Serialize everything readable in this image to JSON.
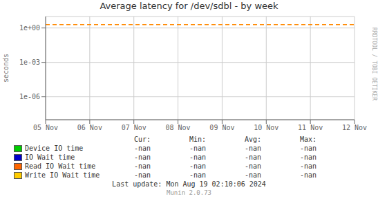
{
  "chart_data": {
    "type": "line",
    "title": "Average latency for /dev/sdbl - by week",
    "y_label": "seconds",
    "categories": [
      "05 Nov",
      "06 Nov",
      "07 Nov",
      "08 Nov",
      "09 Nov",
      "10 Nov",
      "11 Nov",
      "12 Nov"
    ],
    "series": [
      {
        "name": "Device IO time",
        "color": "#00cc00",
        "values": [
          null,
          null,
          null,
          null,
          null,
          null,
          null,
          null
        ],
        "legend_values": [
          "-nan",
          "-nan",
          "-nan",
          "-nan"
        ]
      },
      {
        "name": "IO Wait time",
        "color": "#0000cc",
        "values": [
          null,
          null,
          null,
          null,
          null,
          null,
          null,
          null
        ],
        "legend_values": [
          "-nan",
          "-nan",
          "-nan",
          "-nan"
        ]
      },
      {
        "name": "Read IO Wait time",
        "color": "#ff6600",
        "values": [
          null,
          null,
          null,
          null,
          null,
          null,
          null,
          null
        ],
        "legend_values": [
          "-nan",
          "-nan",
          "-nan",
          "-nan"
        ]
      },
      {
        "name": "Write IO Wait time",
        "color": "#ffcc00",
        "values": [
          null,
          null,
          null,
          null,
          null,
          null,
          null,
          null
        ],
        "legend_values": [
          "-nan",
          "-nan",
          "-nan",
          "-nan"
        ]
      }
    ],
    "legend_columns": [
      "Cur:",
      "Min:",
      "Avg:",
      "Max:"
    ],
    "ylim": [
      1e-08,
      10
    ],
    "yticks": [
      {
        "value": 1e-06,
        "label": "1e-06"
      },
      {
        "value": 0.001,
        "label": "1e-03"
      },
      {
        "value": 1,
        "label": "1e+00"
      }
    ],
    "log": "y",
    "grid": true,
    "legend": "bottom",
    "hlines": [
      {
        "value": 2.0,
        "color": "#ff8800",
        "line_style": "dashed"
      }
    ],
    "annotations": [
      "Last update: Mon Aug 19 02:10:06 2024",
      "Munin 2.0.73",
      "RRDTOOL / TOBI OETIKER"
    ]
  }
}
